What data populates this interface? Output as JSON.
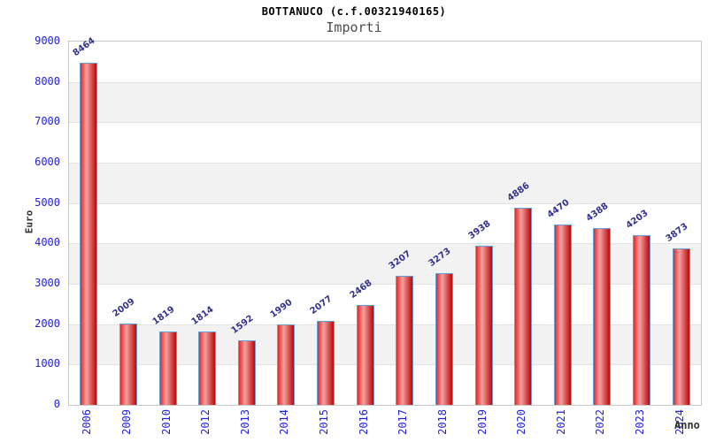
{
  "chart_data": {
    "type": "bar",
    "title": "BOTTANUCO (c.f.00321940165)",
    "subtitle": "Importi",
    "xlabel": "Anno",
    "ylabel": "Euro",
    "categories": [
      "2006",
      "2009",
      "2010",
      "2012",
      "2013",
      "2014",
      "2015",
      "2016",
      "2017",
      "2018",
      "2019",
      "2020",
      "2021",
      "2022",
      "2023",
      "2024"
    ],
    "values": [
      8464,
      2009,
      1819,
      1814,
      1592,
      1990,
      2077,
      2468,
      3207,
      3273,
      3938,
      4886,
      4470,
      4388,
      4203,
      3873
    ],
    "ylim": [
      0,
      9000
    ],
    "ytick_step": 1000,
    "yticks": [
      0,
      1000,
      2000,
      3000,
      4000,
      5000,
      6000,
      7000,
      8000,
      9000
    ],
    "grid": "alternating horizontal bands with light gridlines",
    "legend": "none",
    "colors": {
      "title": "#000000",
      "subtitle": "#4d4d4d",
      "axis_title": "#333333",
      "tick_label": "#2222dd",
      "value_label": "#31318f",
      "bar_gradient_left": "#dd2c2c",
      "bar_gradient_mid": "#f5a0a0",
      "bar_gradient_right": "#bb0707",
      "bar_border": "#63a0d8",
      "band_gray": "#f2f2f2",
      "band_white": "#ffffff",
      "gridline": "#e2e2e2",
      "plot_border": "#c8c8c8",
      "background": "#ffffff"
    }
  }
}
